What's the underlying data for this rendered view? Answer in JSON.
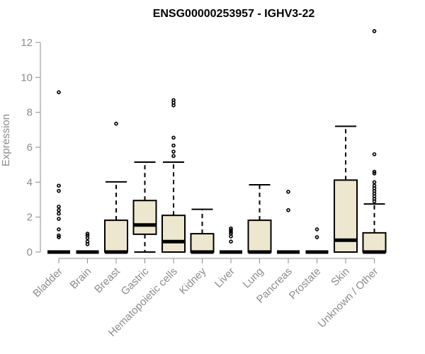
{
  "chart_data": {
    "type": "boxplot",
    "title": "ENSG00000253957 - IGHV3-22",
    "xlabel": "",
    "ylabel": "Expression",
    "ylim": [
      0,
      12.5
    ],
    "yticks": [
      0,
      2,
      4,
      6,
      8,
      10,
      12
    ],
    "grid": false,
    "box_fill": "#ede7cf",
    "categories": [
      "Bladder",
      "Brain",
      "Breast",
      "Gastric",
      "Hematopoietic cells",
      "Kidney",
      "Liver",
      "Lung",
      "Pancreas",
      "Prostate",
      "Skin",
      "Unknown / Other"
    ],
    "boxes": [
      {
        "q1": 0,
        "median": 0,
        "q3": 0,
        "whisker_low": 0,
        "whisker_high": 0,
        "outliers": [
          0.85,
          0.95,
          1.3,
          1.9,
          2.2,
          2.4,
          2.6,
          3.5,
          3.8,
          9.15
        ]
      },
      {
        "q1": 0,
        "median": 0,
        "q3": 0,
        "whisker_low": 0,
        "whisker_high": 0,
        "outliers": [
          0.45,
          0.6,
          0.8,
          0.95,
          1.05
        ]
      },
      {
        "q1": 0,
        "median": 0,
        "q3": 1.82,
        "whisker_low": 0,
        "whisker_high": 4.02,
        "outliers": [
          7.35
        ]
      },
      {
        "q1": 1.02,
        "median": 1.55,
        "q3": 2.95,
        "whisker_low": 0,
        "whisker_high": 5.15,
        "outliers": []
      },
      {
        "q1": 0,
        "median": 0.6,
        "q3": 2.1,
        "whisker_low": 0,
        "whisker_high": 5.15,
        "outliers": [
          5.5,
          5.75,
          6.1,
          6.55,
          8.4,
          8.55,
          8.7
        ]
      },
      {
        "q1": 0,
        "median": 0,
        "q3": 1.05,
        "whisker_low": 0,
        "whisker_high": 2.45,
        "outliers": []
      },
      {
        "q1": 0,
        "median": 0,
        "q3": 0,
        "whisker_low": 0,
        "whisker_high": 0,
        "outliers": [
          0.6,
          0.9,
          1.05,
          1.15,
          1.25,
          1.35
        ]
      },
      {
        "q1": 0,
        "median": 0,
        "q3": 1.82,
        "whisker_low": 0,
        "whisker_high": 3.85,
        "outliers": []
      },
      {
        "q1": 0,
        "median": 0,
        "q3": 0,
        "whisker_low": 0,
        "whisker_high": 0,
        "outliers": [
          2.4,
          3.45
        ]
      },
      {
        "q1": 0,
        "median": 0,
        "q3": 0,
        "whisker_low": 0,
        "whisker_high": 0,
        "outliers": [
          0.85,
          1.3
        ]
      },
      {
        "q1": 0,
        "median": 0.68,
        "q3": 4.12,
        "whisker_low": 0,
        "whisker_high": 7.2,
        "outliers": []
      },
      {
        "q1": 0,
        "median": 0,
        "q3": 1.1,
        "whisker_low": 0,
        "whisker_high": 2.75,
        "outliers": [
          2.9,
          3.05,
          3.2,
          3.35,
          3.5,
          3.65,
          3.8,
          4.0,
          4.5,
          4.6,
          5.6,
          12.65
        ]
      }
    ]
  }
}
